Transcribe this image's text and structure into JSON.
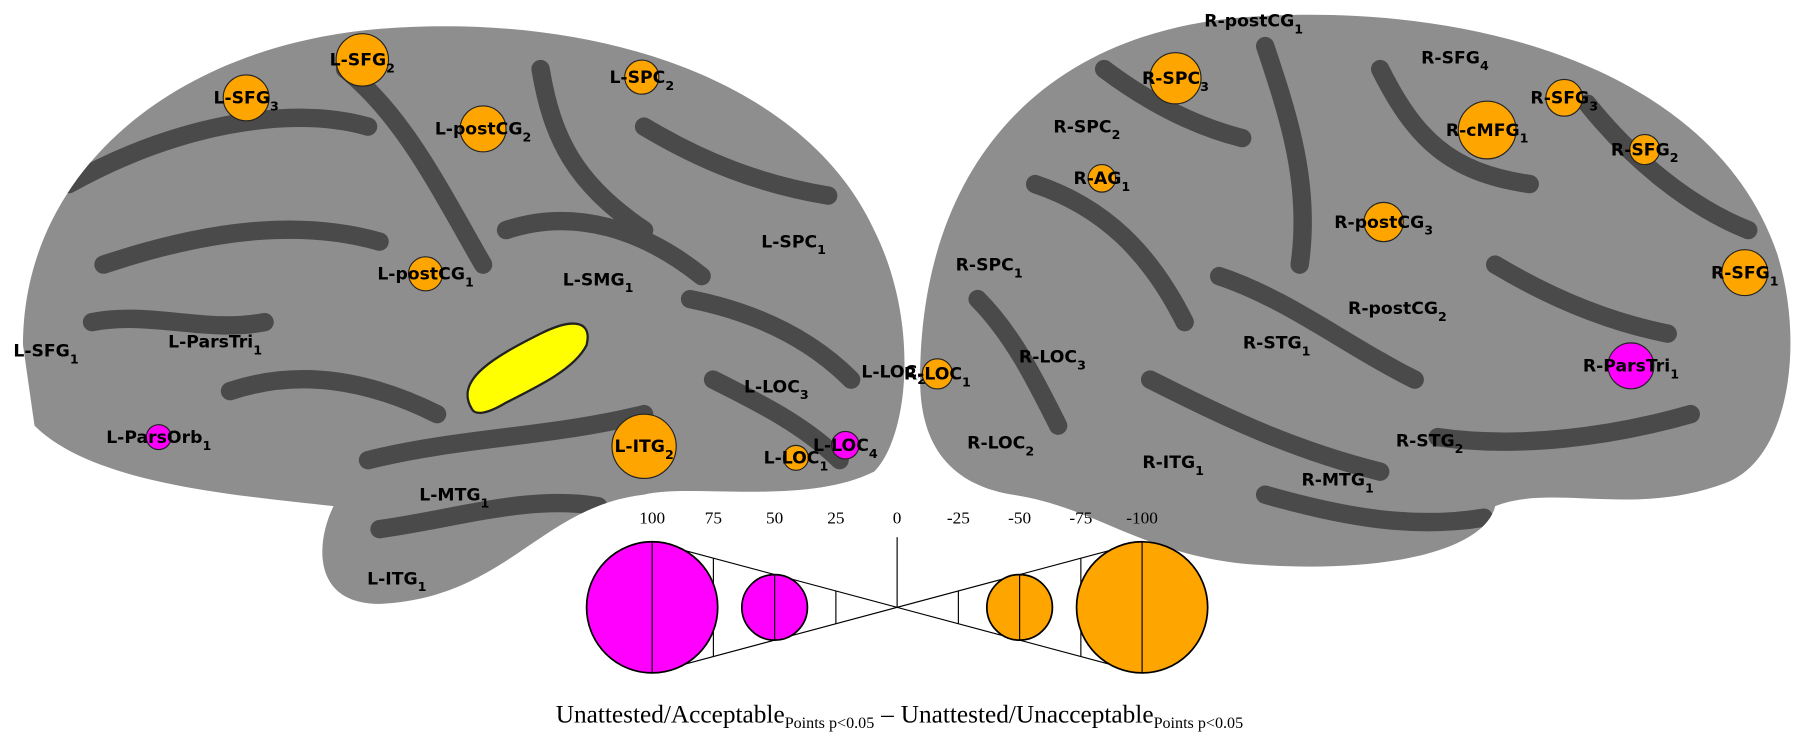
{
  "regions": [
    {
      "name": "L-SFG",
      "sub": "3",
      "value": -35
    },
    {
      "name": "L-SFG",
      "sub": "2",
      "value": -40
    },
    {
      "name": "L-SPC",
      "sub": "2",
      "value": -26
    },
    {
      "name": "L-postCG",
      "sub": "2",
      "value": -35
    },
    {
      "name": "L-postCG",
      "sub": "1",
      "value": -26
    },
    {
      "name": "L-SMG",
      "sub": "1",
      "value": null
    },
    {
      "name": "L-SPC",
      "sub": "1",
      "value": null
    },
    {
      "name": "L-SFG",
      "sub": "1",
      "value": null
    },
    {
      "name": "L-ParsTri",
      "sub": "1",
      "value": null
    },
    {
      "name": "L-ParsOrb",
      "sub": "1",
      "value": 19
    },
    {
      "name": "L-ITG",
      "sub": "2",
      "value": -49
    },
    {
      "name": "L-LOC",
      "sub": "3",
      "value": null
    },
    {
      "name": "L-LOC",
      "sub": "2",
      "value": null
    },
    {
      "name": "L-LOC",
      "sub": "1",
      "value": -19
    },
    {
      "name": "L-LOC",
      "sub": "4",
      "value": 21
    },
    {
      "name": "L-MTG",
      "sub": "1",
      "value": null
    },
    {
      "name": "L-ITG",
      "sub": "1",
      "value": null
    },
    {
      "name": "R-postCG",
      "sub": "1",
      "value": null
    },
    {
      "name": "R-SFG",
      "sub": "4",
      "value": null
    },
    {
      "name": "R-SPC",
      "sub": "3",
      "value": -39
    },
    {
      "name": "R-SFG",
      "sub": "3",
      "value": -28
    },
    {
      "name": "R-SPC",
      "sub": "2",
      "value": null
    },
    {
      "name": "R-cMFG",
      "sub": "1",
      "value": -44
    },
    {
      "name": "R-SFG",
      "sub": "2",
      "value": -23
    },
    {
      "name": "R-AG",
      "sub": "1",
      "value": -21
    },
    {
      "name": "R-postCG",
      "sub": "3",
      "value": -30
    },
    {
      "name": "R-SPC",
      "sub": "1",
      "value": null
    },
    {
      "name": "R-SFG",
      "sub": "1",
      "value": -35
    },
    {
      "name": "R-postCG",
      "sub": "2",
      "value": null
    },
    {
      "name": "R-LOC",
      "sub": "1",
      "value": -23
    },
    {
      "name": "R-LOC",
      "sub": "3",
      "value": null
    },
    {
      "name": "R-STG",
      "sub": "1",
      "value": null
    },
    {
      "name": "R-ParsTri",
      "sub": "1",
      "value": 35
    },
    {
      "name": "R-LOC",
      "sub": "2",
      "value": null
    },
    {
      "name": "R-STG",
      "sub": "2",
      "value": null
    },
    {
      "name": "R-ITG",
      "sub": "1",
      "value": null
    },
    {
      "name": "R-MTG",
      "sub": "1",
      "value": null
    }
  ],
  "positive_color": "#ff00ff",
  "negative_color": "#ffa500",
  "legend": {
    "ticks": [
      100,
      75,
      50,
      25,
      0,
      -25,
      -50,
      -75,
      -100
    ],
    "circles": [
      100,
      50,
      -50,
      -100
    ]
  },
  "caption": {
    "left": "Unattested/Acceptable",
    "left_sub": "Points p<0.05",
    "separator": "–",
    "right": "Unattested/Unacceptable",
    "right_sub": "Points p<0.05"
  }
}
